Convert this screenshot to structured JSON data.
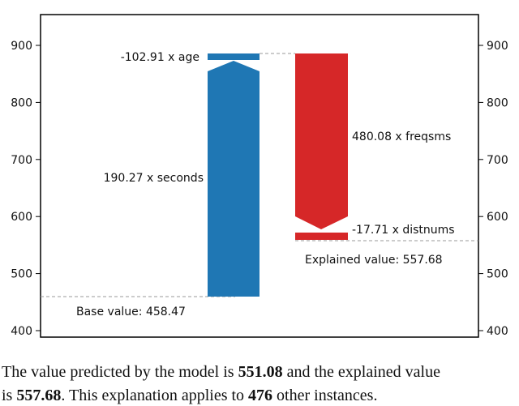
{
  "chart_data": {
    "type": "waterfall",
    "yticks": [
      400,
      500,
      600,
      700,
      800,
      900
    ],
    "ylim": [
      390,
      955
    ],
    "base_value": 458.47,
    "base_label": "Base value: 458.47",
    "explained_value": 557.68,
    "explained_label": "Explained value: 557.68",
    "contributions": [
      {
        "label": "190.27 x seconds",
        "value": 190.27,
        "color": "#1f77b4"
      },
      {
        "label": "-102.91 x age",
        "value": -102.91,
        "color": "#1f77b4"
      },
      {
        "label": "480.08 x freqsms",
        "value": 480.08,
        "color": "#d62728"
      },
      {
        "label": "-17.71 x distnums",
        "value": -17.71,
        "color": "#d62728"
      }
    ]
  },
  "caption": {
    "line1_prefix": "The value predicted by the model is ",
    "predicted": "551.08",
    "line1_suffix": " and the explained value",
    "line2_prefix": "is ",
    "explained": "557.68",
    "line2_mid": ". This explanation applies to ",
    "instances": "476",
    "line2_suffix": " other instances."
  }
}
